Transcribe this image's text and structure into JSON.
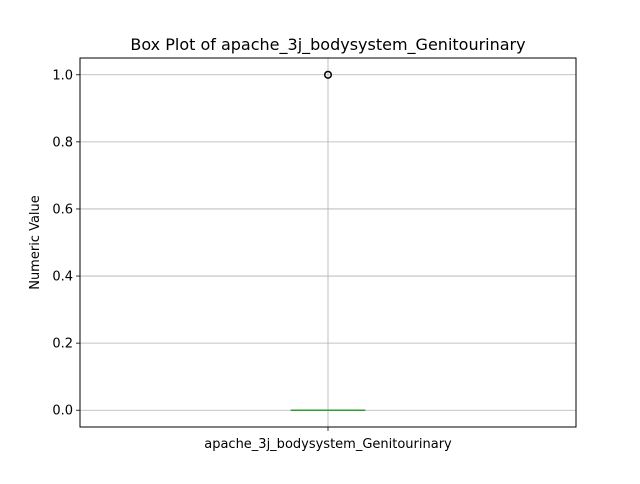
{
  "chart_data": {
    "type": "box",
    "title": "Box Plot of apache_3j_bodysystem_Genitourinary",
    "xlabel": "",
    "ylabel": "Numeric Value",
    "categories": [
      "apache_3j_bodysystem_Genitourinary"
    ],
    "boxes": [
      {
        "category": "apache_3j_bodysystem_Genitourinary",
        "min": 0.0,
        "q1": 0.0,
        "median": 0.0,
        "q3": 0.0,
        "max": 0.0,
        "outliers": [
          1.0
        ]
      }
    ],
    "ylim": [
      -0.05,
      1.05
    ],
    "yticks": [
      0.0,
      0.2,
      0.4,
      0.6,
      0.8,
      1.0
    ],
    "ytick_labels": [
      "0.0",
      "0.2",
      "0.4",
      "0.6",
      "0.8",
      "1.0"
    ],
    "grid": true,
    "colors": {
      "box": "#1f77b4",
      "median": "#2ca02c",
      "grid": "#b0b0b0",
      "outlier": "#000000"
    }
  }
}
